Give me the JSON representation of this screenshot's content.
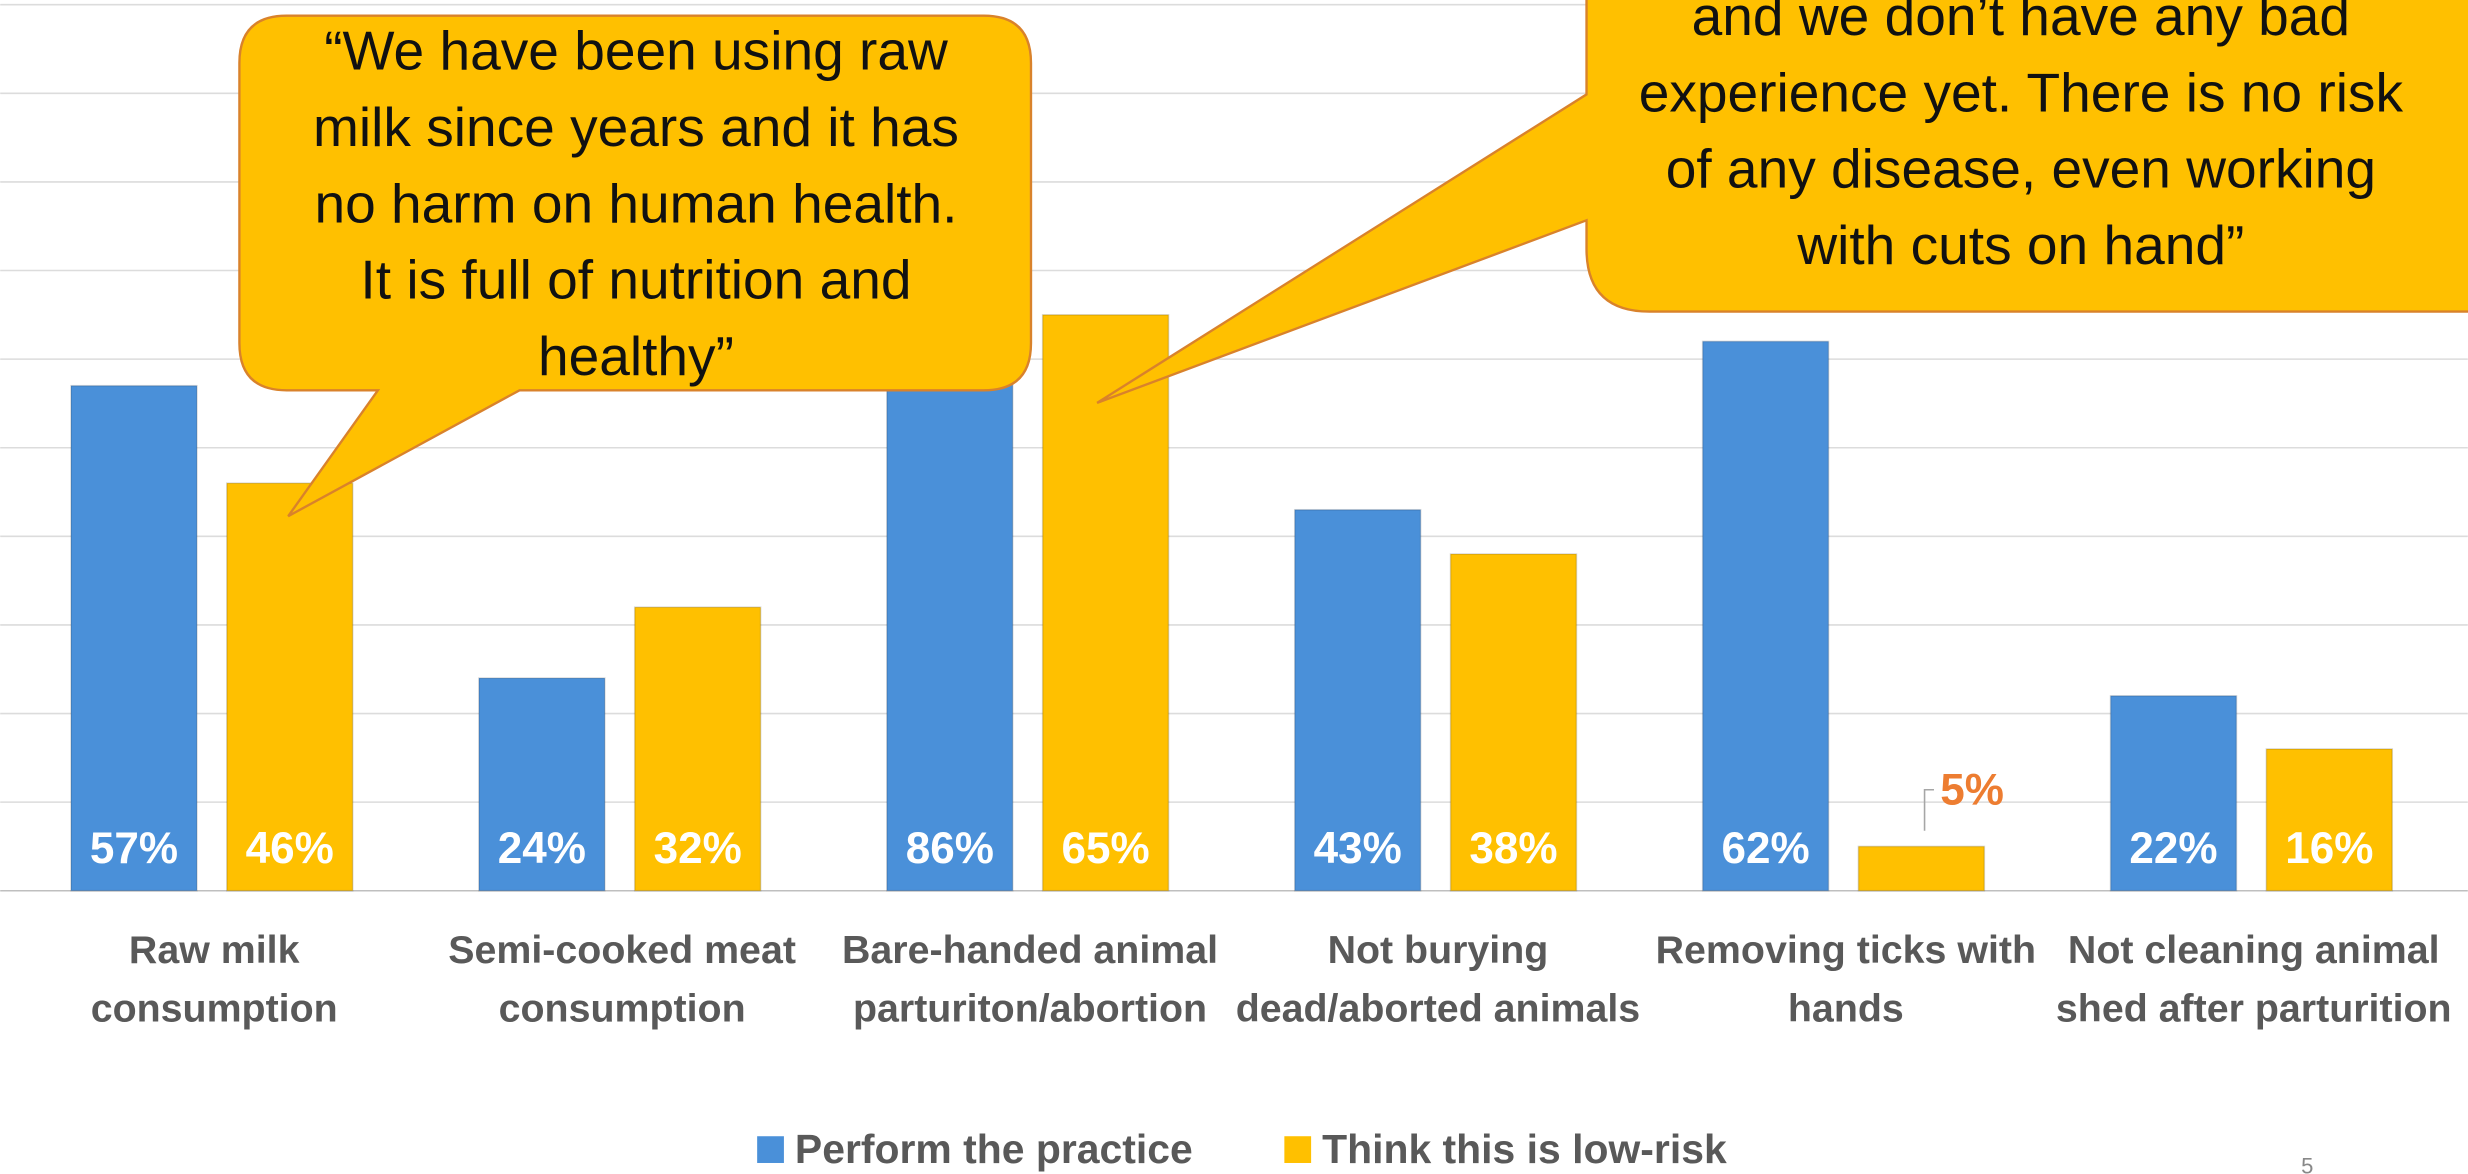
{
  "chart_data": {
    "type": "bar",
    "categories": [
      "Raw milk consumption",
      "Semi-cooked meat consumption",
      "Bare-handed animal parturiton/abortion",
      "Not burying dead/aborted animals",
      "Removing ticks with hands",
      "Not cleaning animal shed after parturition"
    ],
    "series": [
      {
        "name": "Perform the practice",
        "color": "#4a90d9",
        "values": [
          57,
          24,
          86,
          43,
          62,
          22
        ],
        "value_labels": [
          "57%",
          "24%",
          "86%",
          "43%",
          "62%",
          "22%"
        ]
      },
      {
        "name": "Think this is low-risk",
        "color": "#ffc000",
        "values": [
          46,
          32,
          65,
          38,
          5,
          16
        ],
        "value_labels": [
          "46%",
          "32%",
          "65%",
          "38%",
          "5%",
          "16%"
        ]
      }
    ],
    "ylim": [
      0,
      100
    ],
    "yticks": [
      0,
      10,
      20,
      30,
      40,
      50,
      60,
      70,
      80,
      90,
      100
    ],
    "grid": true,
    "legend": "bottom",
    "annotations": [
      {
        "lines": [
          "“We have been using raw",
          "milk since years and it has",
          "no harm on human health.",
          "It is full of nutrition and",
          "healthy”"
        ]
      },
      {
        "lines": [
          "and we don’t have any bad",
          "experience yet. There is no risk",
          "of any disease, even working",
          "with cuts on hand”"
        ]
      }
    ],
    "page_number": "5"
  }
}
